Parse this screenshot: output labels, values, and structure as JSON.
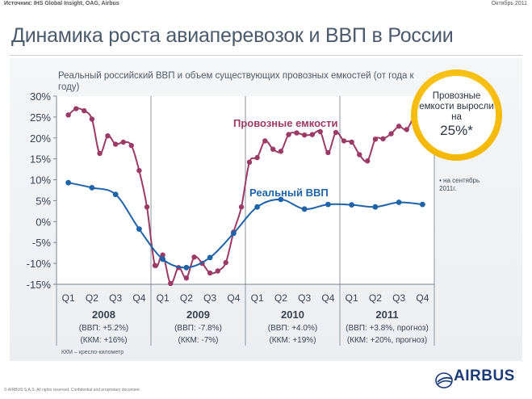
{
  "header": {
    "source": "Источник: IHS Global Insight, OAG, Airbus",
    "date": "Октябрь 2011"
  },
  "slide_title": "Динамика роста авиаперевозок и ВВП в России",
  "chart_subtitle": "Реальный российский ВВП и объем существующих провозных емкостей (от года к году)",
  "badge": {
    "text": "Провозные емкости выросли на",
    "big": "25%*"
  },
  "note": "• на сентябрь 2011г.",
  "kkm_note": "ККМ – кресло-километр",
  "footer": "© AIRBUS S.A.S. All rights reserved. Confidential and proprietary document.",
  "logo": "AIRBUS",
  "colors": {
    "capacity": "#9b3a66",
    "gdp": "#1f64a8",
    "badge": "#f5b800",
    "axis_text": "#3a4250"
  },
  "chart_data": {
    "type": "line",
    "title": "",
    "ylim": [
      -15,
      30
    ],
    "yticks": [
      "30%",
      "25%",
      "20%",
      "15%",
      "10%",
      "5%",
      "0%",
      "-5%",
      "-10%",
      "-15%"
    ],
    "quarter_labels": [
      "Q1",
      "Q2",
      "Q3",
      "Q4",
      "Q1",
      "Q2",
      "Q3",
      "Q4",
      "Q1",
      "Q2",
      "Q3",
      "Q4",
      "Q1",
      "Q2",
      "Q3",
      "Q4"
    ],
    "years": [
      {
        "year": "2008",
        "gdp": "(ВВП: +5.2%)",
        "kkm": "(ККМ: +16%)"
      },
      {
        "year": "2009",
        "gdp": "(ВВП: -7.8%)",
        "kkm": "(ККМ: -7%)"
      },
      {
        "year": "2010",
        "gdp": "(ВВП: +4.0%)",
        "kkm": "(ККМ: +19%)"
      },
      {
        "year": "2011",
        "gdp": "(ВВП: +3.8%, прогноз)",
        "kkm": "(ККМ: +20%, прогноз)"
      }
    ],
    "series": [
      {
        "name": "Провозные емкости",
        "x": [
          1,
          1.33,
          1.67,
          2,
          2.33,
          2.67,
          3,
          3.33,
          3.67,
          4,
          4.33,
          4.67,
          5,
          5.33,
          5.67,
          6,
          6.33,
          6.67,
          7,
          7.33,
          7.67,
          8,
          8.33,
          8.67,
          9,
          9.33,
          9.67,
          10,
          10.33,
          10.67,
          11,
          11.33,
          11.67,
          12,
          12.33,
          12.67,
          13,
          13.33,
          13.67,
          14,
          14.33,
          14.67,
          15,
          15.33,
          15.67
        ],
        "values": [
          25.5,
          27,
          26.5,
          24.5,
          16.3,
          20.5,
          18.5,
          19,
          18.2,
          12.2,
          3.5,
          -10.5,
          -8,
          -14.8,
          -11,
          -13.5,
          -8.5,
          -10,
          -12.3,
          -11.8,
          -9.8,
          -2.5,
          3.5,
          14.2,
          15.3,
          19.3,
          17.3,
          16.8,
          20.8,
          21.2,
          20.7,
          20.8,
          21.5,
          16.5,
          21.3,
          19.3,
          19,
          16,
          14.5,
          19.7,
          19.8,
          21,
          22.8,
          22,
          25.7
        ]
      },
      {
        "name": "Реальный ВВП",
        "x": [
          1,
          2,
          3,
          4,
          5,
          6,
          7,
          8,
          9,
          10,
          11,
          12,
          13,
          14,
          15,
          16
        ],
        "values": [
          9.3,
          8.1,
          6.5,
          -1.8,
          -9,
          -11,
          -8.6,
          -2.8,
          3.5,
          5.3,
          3,
          4.1,
          4,
          3.5,
          4.6,
          4.1
        ]
      }
    ]
  }
}
